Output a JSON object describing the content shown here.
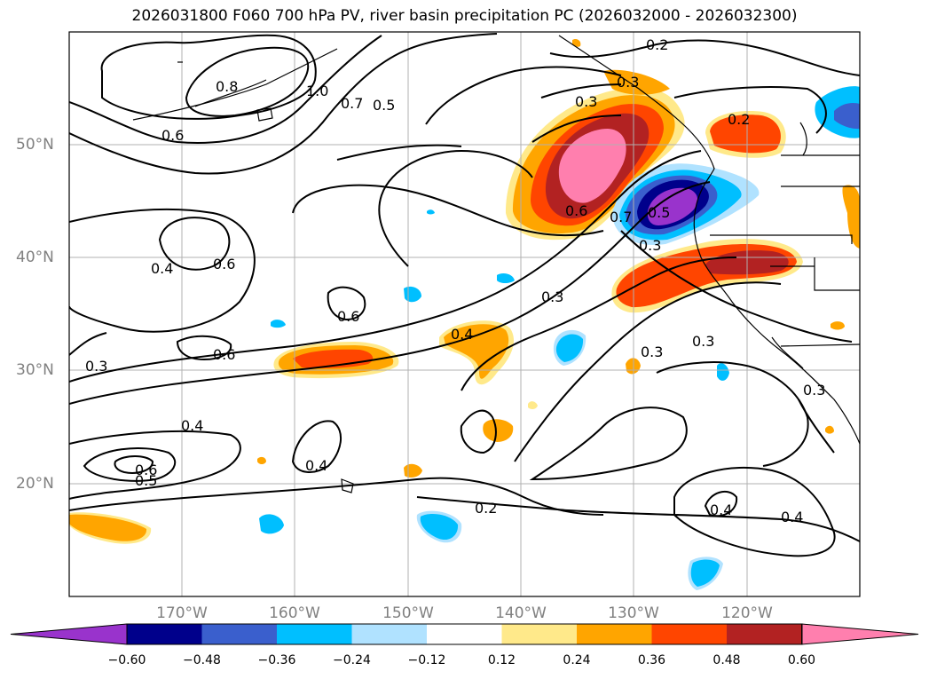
{
  "title": "2026031800 F060 700 hPa PV, river basin precipitation PC (2026032000 - 2026032300)",
  "map": {
    "lon_range": [
      -180,
      -110
    ],
    "lat_range": [
      10,
      60
    ],
    "lat_labels": [
      "50°N",
      "40°N",
      "30°N",
      "20°N"
    ],
    "lon_labels": [
      "170°W",
      "160°W",
      "150°W",
      "140°W",
      "130°W",
      "120°W"
    ],
    "contour_labels": [
      "0.2",
      "0.8",
      "1.0",
      "0.7",
      "0.5",
      "0.6",
      "0.3",
      "0.4",
      "0.6",
      "0.3",
      "0.6",
      "0.6",
      "0.4",
      "0.3",
      "0.3",
      "0.4",
      "0.4",
      "0.6",
      "0.5",
      "0.4",
      "0.2",
      "0.4",
      "0.3",
      "0.3",
      "0.5",
      "0.6",
      "0.7",
      "0.2",
      "0.3",
      "0.3"
    ]
  },
  "colorbar": {
    "ticks": [
      "−0.60",
      "−0.48",
      "−0.36",
      "−0.24",
      "−0.12",
      "0.12",
      "0.24",
      "0.36",
      "0.48",
      "0.60"
    ],
    "colors": [
      "#9933cc",
      "#00008b",
      "#3a5fcd",
      "#00bfff",
      "#b0e2ff",
      "#ffffff",
      "#ffe98a",
      "#ffa500",
      "#ff4500",
      "#b22222",
      "#ff7fae"
    ]
  }
}
